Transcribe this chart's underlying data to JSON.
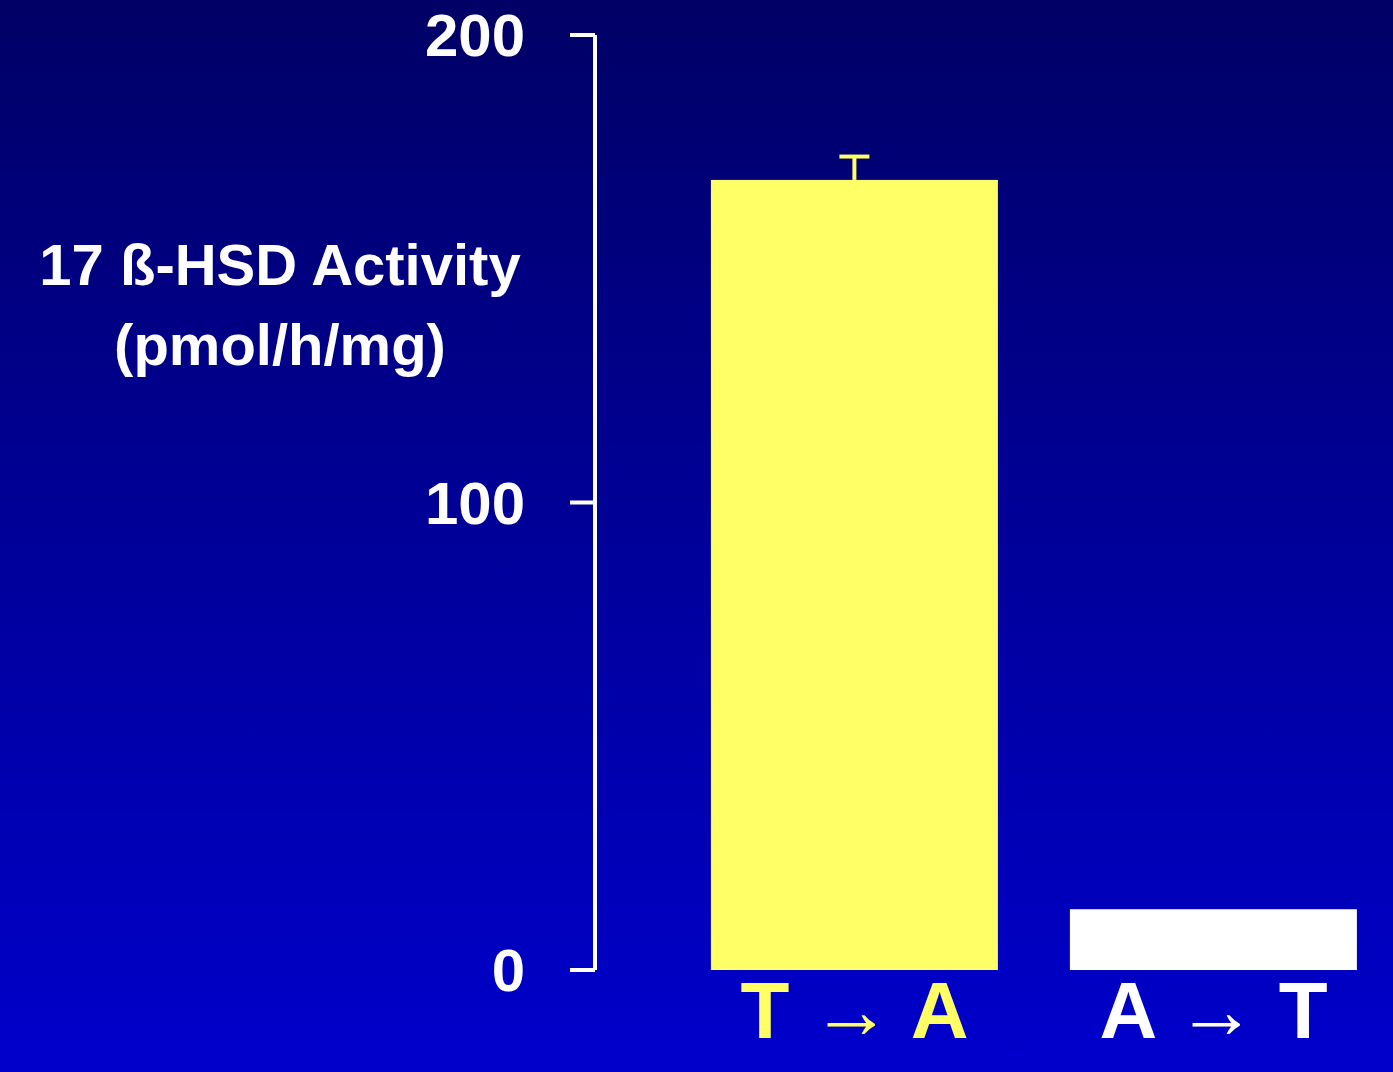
{
  "chart_data": {
    "type": "bar",
    "ylabel": "17 ß-HSD Activity\n(pmol/h/mg)",
    "categories": [
      "T → A",
      "A → T"
    ],
    "values": [
      169,
      13
    ],
    "colors": [
      "#ffff66",
      "#ffffff"
    ],
    "errors": [
      [
        169,
        174
      ],
      null
    ],
    "ylim": [
      0,
      200
    ],
    "yticks": [
      0,
      100,
      200
    ],
    "grid": false
  }
}
